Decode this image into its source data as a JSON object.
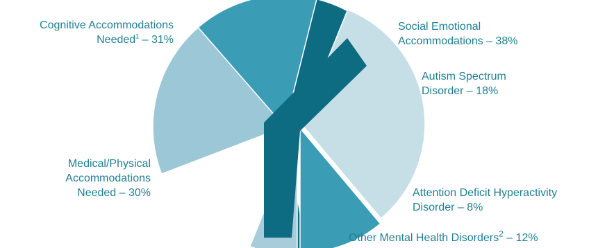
{
  "chart_data": {
    "type": "pie",
    "slices": [
      {
        "label": "Cognitive Accommodations Needed",
        "value": 31,
        "color": "#3a9cb5",
        "exploded": false
      },
      {
        "label": "Social Emotional Accommodations",
        "value": 38,
        "color": "#0d6b82",
        "exploded": false,
        "breakdown": true
      },
      {
        "label": "Autism Spectrum Disorder",
        "value": 18,
        "color": "#c6dee6",
        "exploded": true
      },
      {
        "label": "Attention Deficit Hyperactivity Disorder",
        "value": 8,
        "color": "#3a9cb5",
        "exploded": true
      },
      {
        "label": "Other Mental Health Disorders",
        "value": 12,
        "color": "#a8ccda",
        "exploded": true
      },
      {
        "label": "Medical/Physical Accommodations Needed",
        "value": 30,
        "color": "#9cc7d6",
        "exploded": false
      }
    ],
    "labels": {
      "cognitive": {
        "line1": "Cognitive Accommodations",
        "line2a": "Needed",
        "sup": "1",
        "line2b": " – 31%"
      },
      "social": {
        "line1": "Social Emotional",
        "line2": "Accommodations – 38%"
      },
      "autism": {
        "line1": "Autism Spectrum",
        "line2": "Disorder – 18%"
      },
      "adhd": {
        "line1": "Attention Deficit Hyperactivity",
        "line2": "Disorder – 8%"
      },
      "other": {
        "text_a": "Other Mental Health Disorders",
        "sup": "2",
        "text_b": " – 12%"
      },
      "medical": {
        "line1": "Medical/Physical",
        "line2": "Accommodations",
        "line3": "Needed – 30%"
      }
    },
    "text_color": "#1f7f93"
  }
}
